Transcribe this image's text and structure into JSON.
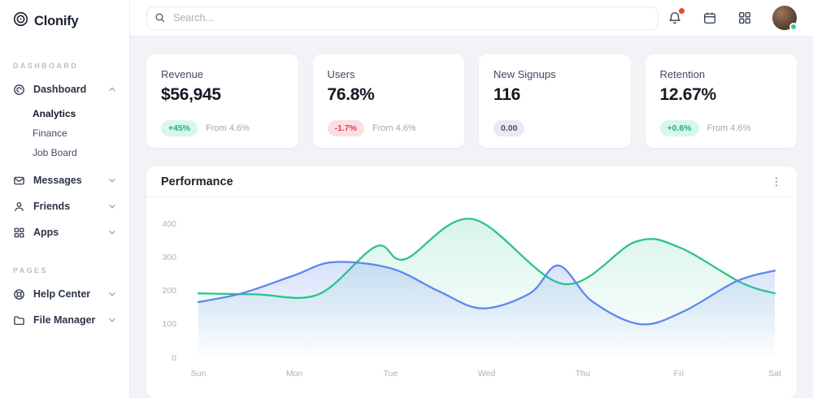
{
  "brand": {
    "name": "Clonify"
  },
  "topbar": {
    "search_placeholder": "Search...",
    "icons": [
      "bell-icon",
      "calendar-icon",
      "apps-grid-icon",
      "avatar"
    ]
  },
  "sidebar": {
    "sections": [
      {
        "label": "DASHBOARD",
        "items": [
          {
            "label": "Dashboard",
            "icon": "dashboard-gauge",
            "state": "expanded",
            "children": [
              {
                "label": "Analytics",
                "active": true
              },
              {
                "label": "Finance",
                "active": false
              },
              {
                "label": "Job Board",
                "active": false
              }
            ]
          },
          {
            "label": "Messages",
            "icon": "mail",
            "state": "collapsed"
          },
          {
            "label": "Friends",
            "icon": "user",
            "state": "collapsed"
          },
          {
            "label": "Apps",
            "icon": "grid",
            "state": "collapsed"
          }
        ]
      },
      {
        "label": "PAGES",
        "items": [
          {
            "label": "Help Center",
            "icon": "lifebuoy",
            "state": "collapsed"
          },
          {
            "label": "File Manager",
            "icon": "folder",
            "state": "collapsed"
          }
        ]
      }
    ]
  },
  "stats": [
    {
      "label": "Revenue",
      "value": "$56,945",
      "badge": "+45%",
      "badge_type": "positive",
      "note": "From 4.6%"
    },
    {
      "label": "Users",
      "value": "76.8%",
      "badge": "-1.7%",
      "badge_type": "negative",
      "note": "From 4.6%"
    },
    {
      "label": "New Signups",
      "value": "116",
      "badge": "0.00",
      "badge_type": "neutral",
      "note": ""
    },
    {
      "label": "Retention",
      "value": "12.67%",
      "badge": "+0.6%",
      "badge_type": "positive",
      "note": "From 4.6%"
    }
  ],
  "performance": {
    "title": "Performance"
  },
  "chart_data": {
    "type": "area",
    "title": "Performance",
    "x_labels": [
      "Sun",
      "Mon",
      "Tue",
      "Wed",
      "Thu",
      "Fri",
      "Sat"
    ],
    "y_ticks": [
      0,
      100,
      200,
      300,
      400
    ],
    "ylim": [
      0,
      440
    ],
    "grid": false,
    "legend": "none",
    "series": [
      {
        "name": "series-green",
        "color": "#2cc38c",
        "fill_opacity": 0.18,
        "points": [
          [
            0,
            196
          ],
          [
            0.6,
            193
          ],
          [
            1.25,
            193
          ],
          [
            1.85,
            336
          ],
          [
            2.15,
            298
          ],
          [
            2.85,
            418
          ],
          [
            3.8,
            224
          ],
          [
            4.55,
            350
          ],
          [
            5.0,
            334
          ],
          [
            5.65,
            228
          ],
          [
            6,
            196
          ]
        ]
      },
      {
        "name": "series-blue",
        "color": "#5e86f2",
        "fill_opacity": 0.34,
        "points": [
          [
            0,
            170
          ],
          [
            0.45,
            196
          ],
          [
            1,
            250
          ],
          [
            1.4,
            289
          ],
          [
            2,
            271
          ],
          [
            2.5,
            203
          ],
          [
            2.95,
            151
          ],
          [
            3.45,
            196
          ],
          [
            3.75,
            279
          ],
          [
            4.1,
            172
          ],
          [
            4.6,
            104
          ],
          [
            5.05,
            142
          ],
          [
            5.6,
            232
          ],
          [
            6,
            264
          ]
        ]
      }
    ]
  }
}
